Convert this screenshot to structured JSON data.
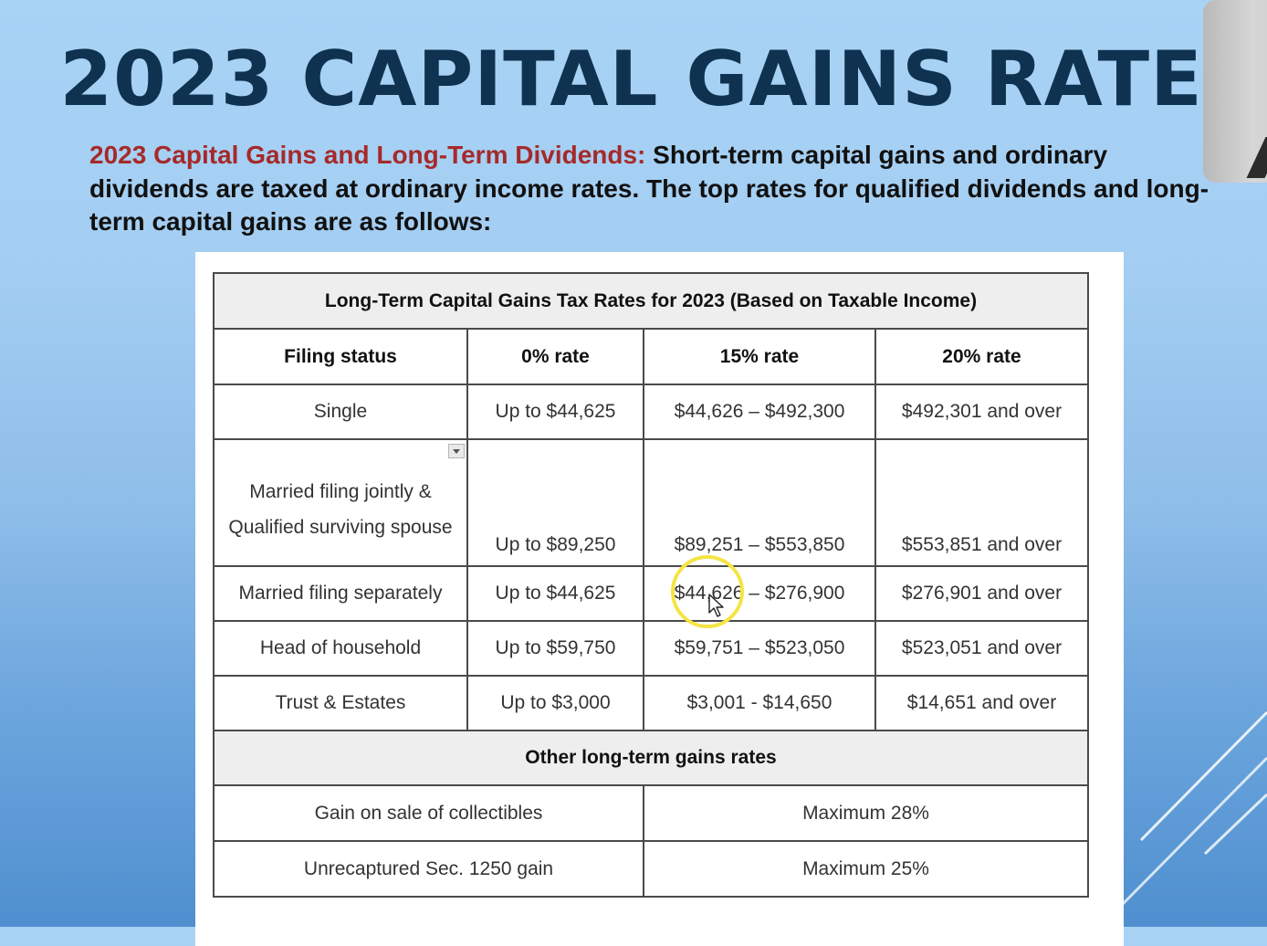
{
  "title": "2023 CAPITAL GAINS RATES",
  "intro": {
    "label": "2023 Capital Gains and Long-Term Dividends:",
    "text": " Short-term capital gains and ordinary dividends are taxed at ordinary income rates. The top rates for qualified dividends and long-term capital gains are as follows:"
  },
  "table": {
    "caption": "Long-Term Capital Gains Tax Rates for 2023 (Based on Taxable Income)",
    "headers": [
      "Filing status",
      "0% rate",
      "15% rate",
      "20% rate"
    ],
    "rows": [
      [
        "Single",
        "Up to $44,625",
        "$44,626 – $492,300",
        "$492,301 and over"
      ],
      [
        "Married filing jointly & Qualified surviving spouse",
        "Up to $89,250",
        "$89,251 – $553,850",
        "$553,851 and over"
      ],
      [
        "Married filing separately",
        "Up to $44,625",
        "$44,626 – $276,900",
        "$276,901 and over"
      ],
      [
        "Head of household",
        "Up to $59,750",
        "$59,751 – $523,050",
        "$523,051 and over"
      ],
      [
        "Trust & Estates",
        "Up to $3,000",
        "$3,001 - $14,650",
        "$14,651 and over"
      ]
    ],
    "other_caption": "Other long-term gains rates",
    "other_rows": [
      [
        "Gain on sale of collectibles",
        "Maximum 28%"
      ],
      [
        "Unrecaptured Sec. 1250 gain",
        "Maximum 25%"
      ]
    ]
  },
  "colors": {
    "title": "#0f3250",
    "intro_label": "#a52a2a",
    "cursor_highlight": "#f5e443"
  },
  "icons": [
    "dropdown-icon",
    "cursor-highlight-ring",
    "mouse-pointer-icon"
  ]
}
